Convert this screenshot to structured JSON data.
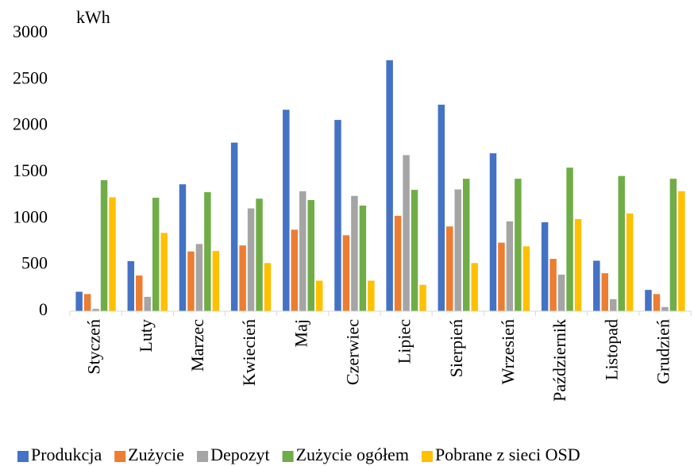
{
  "chart_data": {
    "type": "bar",
    "y_label": "kWh",
    "categories": [
      "Styczeń",
      "Luty",
      "Marzec",
      "Kwiecień",
      "Maj",
      "Czerwiec",
      "Lipiec",
      "Sierpień",
      "Wrzesień",
      "Październik",
      "Listopad",
      "Grudzień"
    ],
    "series": [
      {
        "name": "Produkcja",
        "color": "#4472c4",
        "values": [
          210,
          540,
          1370,
          1820,
          2175,
          2065,
          2710,
          2230,
          1705,
          960,
          545,
          230
        ]
      },
      {
        "name": "Zużycie",
        "color": "#ed7d31",
        "values": [
          185,
          385,
          645,
          710,
          880,
          820,
          1030,
          915,
          740,
          565,
          410,
          185
        ]
      },
      {
        "name": "Depozyt",
        "color": "#a5a5a5",
        "values": [
          25,
          155,
          725,
          1110,
          1295,
          1245,
          1685,
          1315,
          970,
          395,
          130,
          45
        ]
      },
      {
        "name": "Zużycie ogółem",
        "color": "#70ad47",
        "values": [
          1415,
          1225,
          1285,
          1215,
          1200,
          1140,
          1310,
          1430,
          1430,
          1550,
          1460,
          1430
        ]
      },
      {
        "name": "Pobrane z sieci OSD",
        "color": "#ffc000",
        "values": [
          1230,
          845,
          650,
          520,
          330,
          330,
          285,
          520,
          700,
          995,
          1055,
          1295
        ]
      }
    ],
    "ylim": [
      0,
      3000
    ],
    "yticks": [
      0,
      500,
      1000,
      1500,
      2000,
      2500,
      3000
    ],
    "grid": false,
    "legend": "bottom"
  }
}
